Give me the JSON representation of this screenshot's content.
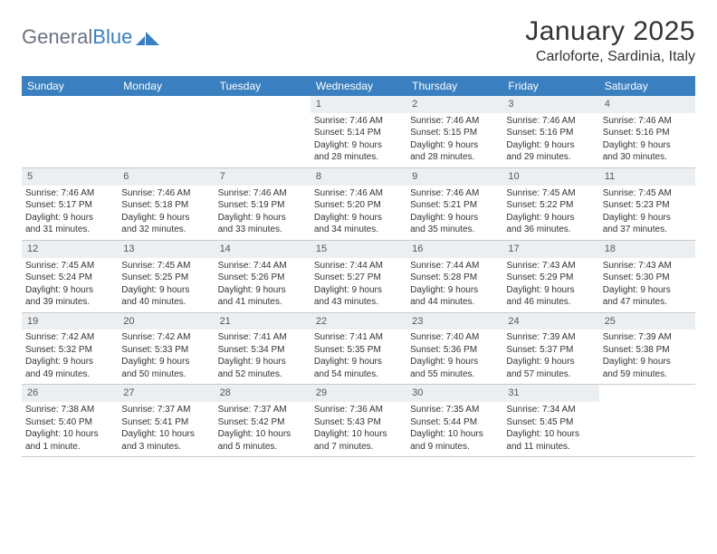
{
  "brand": {
    "part1": "General",
    "part2": "Blue"
  },
  "title": "January 2025",
  "location": "Carloforte, Sardinia, Italy",
  "colors": {
    "header_bg": "#3a7fbf",
    "header_text": "#ffffff",
    "daynum_bg": "#eceff1",
    "border": "#c9c9c9",
    "text": "#333333",
    "logo_gray": "#6b7280",
    "logo_blue": "#3a7fbf",
    "background": "#ffffff"
  },
  "typography": {
    "title_fontsize": 30,
    "location_fontsize": 16,
    "dayhead_fontsize": 12,
    "cell_fontsize": 10,
    "logo_fontsize": 22
  },
  "day_headers": [
    "Sunday",
    "Monday",
    "Tuesday",
    "Wednesday",
    "Thursday",
    "Friday",
    "Saturday"
  ],
  "weeks": [
    [
      {
        "n": "",
        "lines": []
      },
      {
        "n": "",
        "lines": []
      },
      {
        "n": "",
        "lines": []
      },
      {
        "n": "1",
        "lines": [
          "Sunrise: 7:46 AM",
          "Sunset: 5:14 PM",
          "Daylight: 9 hours",
          "and 28 minutes."
        ]
      },
      {
        "n": "2",
        "lines": [
          "Sunrise: 7:46 AM",
          "Sunset: 5:15 PM",
          "Daylight: 9 hours",
          "and 28 minutes."
        ]
      },
      {
        "n": "3",
        "lines": [
          "Sunrise: 7:46 AM",
          "Sunset: 5:16 PM",
          "Daylight: 9 hours",
          "and 29 minutes."
        ]
      },
      {
        "n": "4",
        "lines": [
          "Sunrise: 7:46 AM",
          "Sunset: 5:16 PM",
          "Daylight: 9 hours",
          "and 30 minutes."
        ]
      }
    ],
    [
      {
        "n": "5",
        "lines": [
          "Sunrise: 7:46 AM",
          "Sunset: 5:17 PM",
          "Daylight: 9 hours",
          "and 31 minutes."
        ]
      },
      {
        "n": "6",
        "lines": [
          "Sunrise: 7:46 AM",
          "Sunset: 5:18 PM",
          "Daylight: 9 hours",
          "and 32 minutes."
        ]
      },
      {
        "n": "7",
        "lines": [
          "Sunrise: 7:46 AM",
          "Sunset: 5:19 PM",
          "Daylight: 9 hours",
          "and 33 minutes."
        ]
      },
      {
        "n": "8",
        "lines": [
          "Sunrise: 7:46 AM",
          "Sunset: 5:20 PM",
          "Daylight: 9 hours",
          "and 34 minutes."
        ]
      },
      {
        "n": "9",
        "lines": [
          "Sunrise: 7:46 AM",
          "Sunset: 5:21 PM",
          "Daylight: 9 hours",
          "and 35 minutes."
        ]
      },
      {
        "n": "10",
        "lines": [
          "Sunrise: 7:45 AM",
          "Sunset: 5:22 PM",
          "Daylight: 9 hours",
          "and 36 minutes."
        ]
      },
      {
        "n": "11",
        "lines": [
          "Sunrise: 7:45 AM",
          "Sunset: 5:23 PM",
          "Daylight: 9 hours",
          "and 37 minutes."
        ]
      }
    ],
    [
      {
        "n": "12",
        "lines": [
          "Sunrise: 7:45 AM",
          "Sunset: 5:24 PM",
          "Daylight: 9 hours",
          "and 39 minutes."
        ]
      },
      {
        "n": "13",
        "lines": [
          "Sunrise: 7:45 AM",
          "Sunset: 5:25 PM",
          "Daylight: 9 hours",
          "and 40 minutes."
        ]
      },
      {
        "n": "14",
        "lines": [
          "Sunrise: 7:44 AM",
          "Sunset: 5:26 PM",
          "Daylight: 9 hours",
          "and 41 minutes."
        ]
      },
      {
        "n": "15",
        "lines": [
          "Sunrise: 7:44 AM",
          "Sunset: 5:27 PM",
          "Daylight: 9 hours",
          "and 43 minutes."
        ]
      },
      {
        "n": "16",
        "lines": [
          "Sunrise: 7:44 AM",
          "Sunset: 5:28 PM",
          "Daylight: 9 hours",
          "and 44 minutes."
        ]
      },
      {
        "n": "17",
        "lines": [
          "Sunrise: 7:43 AM",
          "Sunset: 5:29 PM",
          "Daylight: 9 hours",
          "and 46 minutes."
        ]
      },
      {
        "n": "18",
        "lines": [
          "Sunrise: 7:43 AM",
          "Sunset: 5:30 PM",
          "Daylight: 9 hours",
          "and 47 minutes."
        ]
      }
    ],
    [
      {
        "n": "19",
        "lines": [
          "Sunrise: 7:42 AM",
          "Sunset: 5:32 PM",
          "Daylight: 9 hours",
          "and 49 minutes."
        ]
      },
      {
        "n": "20",
        "lines": [
          "Sunrise: 7:42 AM",
          "Sunset: 5:33 PM",
          "Daylight: 9 hours",
          "and 50 minutes."
        ]
      },
      {
        "n": "21",
        "lines": [
          "Sunrise: 7:41 AM",
          "Sunset: 5:34 PM",
          "Daylight: 9 hours",
          "and 52 minutes."
        ]
      },
      {
        "n": "22",
        "lines": [
          "Sunrise: 7:41 AM",
          "Sunset: 5:35 PM",
          "Daylight: 9 hours",
          "and 54 minutes."
        ]
      },
      {
        "n": "23",
        "lines": [
          "Sunrise: 7:40 AM",
          "Sunset: 5:36 PM",
          "Daylight: 9 hours",
          "and 55 minutes."
        ]
      },
      {
        "n": "24",
        "lines": [
          "Sunrise: 7:39 AM",
          "Sunset: 5:37 PM",
          "Daylight: 9 hours",
          "and 57 minutes."
        ]
      },
      {
        "n": "25",
        "lines": [
          "Sunrise: 7:39 AM",
          "Sunset: 5:38 PM",
          "Daylight: 9 hours",
          "and 59 minutes."
        ]
      }
    ],
    [
      {
        "n": "26",
        "lines": [
          "Sunrise: 7:38 AM",
          "Sunset: 5:40 PM",
          "Daylight: 10 hours",
          "and 1 minute."
        ]
      },
      {
        "n": "27",
        "lines": [
          "Sunrise: 7:37 AM",
          "Sunset: 5:41 PM",
          "Daylight: 10 hours",
          "and 3 minutes."
        ]
      },
      {
        "n": "28",
        "lines": [
          "Sunrise: 7:37 AM",
          "Sunset: 5:42 PM",
          "Daylight: 10 hours",
          "and 5 minutes."
        ]
      },
      {
        "n": "29",
        "lines": [
          "Sunrise: 7:36 AM",
          "Sunset: 5:43 PM",
          "Daylight: 10 hours",
          "and 7 minutes."
        ]
      },
      {
        "n": "30",
        "lines": [
          "Sunrise: 7:35 AM",
          "Sunset: 5:44 PM",
          "Daylight: 10 hours",
          "and 9 minutes."
        ]
      },
      {
        "n": "31",
        "lines": [
          "Sunrise: 7:34 AM",
          "Sunset: 5:45 PM",
          "Daylight: 10 hours",
          "and 11 minutes."
        ]
      },
      {
        "n": "",
        "lines": []
      }
    ]
  ]
}
